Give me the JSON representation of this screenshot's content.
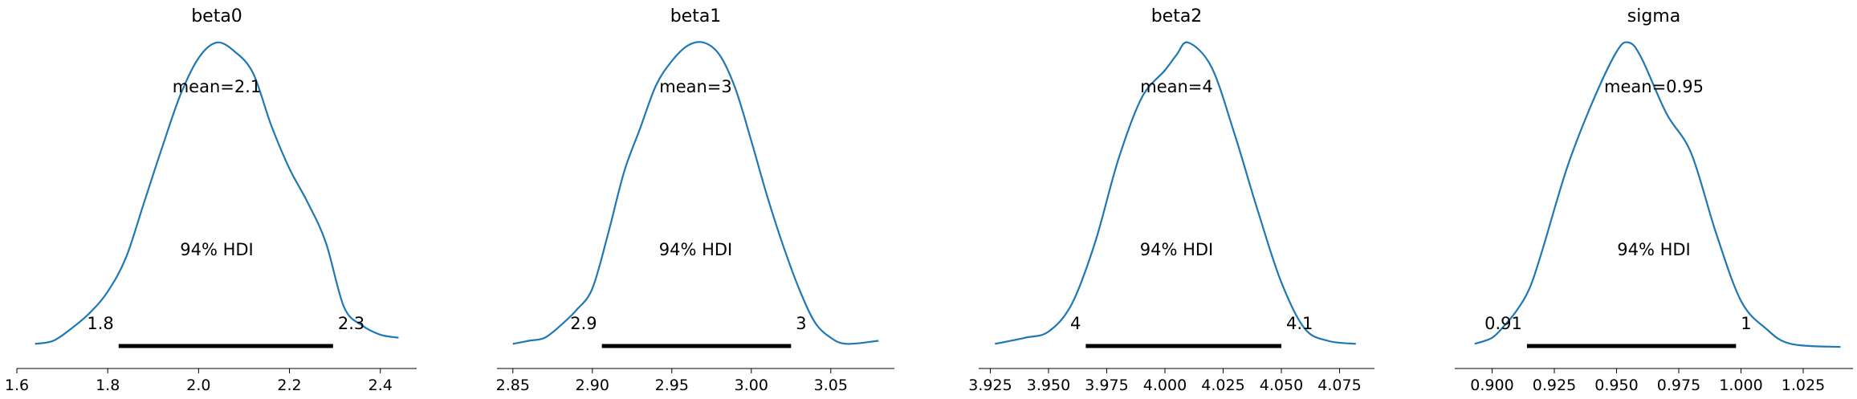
{
  "chart_data": [
    {
      "type": "area",
      "title": "beta0",
      "xlim": [
        1.6,
        2.48
      ],
      "ticks": [
        1.6,
        1.8,
        2.0,
        2.2,
        2.4
      ],
      "tick_labels": [
        "1.6",
        "1.8",
        "2.0",
        "2.2",
        "2.4"
      ],
      "mean_label": "mean=2.1",
      "hdi_label": "94% HDI",
      "hdi": [
        1.824,
        2.296
      ],
      "hdi_low_label": "1.8",
      "hdi_high_label": "2.3",
      "density": [
        [
          1.64,
          0.02
        ],
        [
          1.68,
          0.03
        ],
        [
          1.72,
          0.07
        ],
        [
          1.76,
          0.12
        ],
        [
          1.8,
          0.19
        ],
        [
          1.84,
          0.3
        ],
        [
          1.88,
          0.48
        ],
        [
          1.92,
          0.66
        ],
        [
          1.96,
          0.83
        ],
        [
          2.0,
          0.95
        ],
        [
          2.04,
          1.0
        ],
        [
          2.08,
          0.97
        ],
        [
          2.12,
          0.9
        ],
        [
          2.16,
          0.73
        ],
        [
          2.2,
          0.59
        ],
        [
          2.24,
          0.48
        ],
        [
          2.28,
          0.35
        ],
        [
          2.32,
          0.14
        ],
        [
          2.36,
          0.08
        ],
        [
          2.4,
          0.05
        ],
        [
          2.44,
          0.04
        ]
      ]
    },
    {
      "type": "area",
      "title": "beta1",
      "xlim": [
        2.84,
        3.09
      ],
      "ticks": [
        2.85,
        2.9,
        2.95,
        3.0,
        3.05
      ],
      "tick_labels": [
        "2.85",
        "2.90",
        "2.95",
        "3.00",
        "3.05"
      ],
      "mean_label": "mean=3",
      "hdi_label": "94% HDI",
      "hdi": [
        2.906,
        3.025
      ],
      "hdi_low_label": "2.9",
      "hdi_high_label": "3",
      "density": [
        [
          2.85,
          0.02
        ],
        [
          2.86,
          0.03
        ],
        [
          2.87,
          0.04
        ],
        [
          2.88,
          0.08
        ],
        [
          2.89,
          0.13
        ],
        [
          2.9,
          0.2
        ],
        [
          2.91,
          0.38
        ],
        [
          2.92,
          0.58
        ],
        [
          2.93,
          0.72
        ],
        [
          2.94,
          0.86
        ],
        [
          2.95,
          0.94
        ],
        [
          2.96,
          0.99
        ],
        [
          2.97,
          1.0
        ],
        [
          2.98,
          0.96
        ],
        [
          2.99,
          0.85
        ],
        [
          3.0,
          0.68
        ],
        [
          3.01,
          0.5
        ],
        [
          3.02,
          0.34
        ],
        [
          3.03,
          0.2
        ],
        [
          3.04,
          0.09
        ],
        [
          3.05,
          0.04
        ],
        [
          3.06,
          0.02
        ],
        [
          3.08,
          0.03
        ]
      ]
    },
    {
      "type": "area",
      "title": "beta2",
      "xlim": [
        3.92,
        4.09
      ],
      "ticks": [
        3.925,
        3.95,
        3.975,
        4.0,
        4.025,
        4.05,
        4.075
      ],
      "tick_labels": [
        "3.925",
        "3.950",
        "3.975",
        "4.000",
        "4.025",
        "4.050",
        "4.075"
      ],
      "mean_label": "mean=4",
      "hdi_label": "94% HDI",
      "hdi": [
        3.966,
        4.05
      ],
      "hdi_low_label": "4",
      "hdi_high_label": "4.1",
      "density": [
        [
          3.927,
          0.02
        ],
        [
          3.94,
          0.04
        ],
        [
          3.95,
          0.06
        ],
        [
          3.96,
          0.15
        ],
        [
          3.97,
          0.35
        ],
        [
          3.98,
          0.62
        ],
        [
          3.99,
          0.82
        ],
        [
          4.0,
          0.91
        ],
        [
          4.005,
          0.96
        ],
        [
          4.01,
          1.0
        ],
        [
          4.02,
          0.92
        ],
        [
          4.03,
          0.7
        ],
        [
          4.04,
          0.45
        ],
        [
          4.05,
          0.22
        ],
        [
          4.06,
          0.07
        ],
        [
          4.07,
          0.03
        ],
        [
          4.082,
          0.02
        ]
      ]
    },
    {
      "type": "area",
      "title": "sigma",
      "xlim": [
        0.885,
        1.045
      ],
      "ticks": [
        0.9,
        0.925,
        0.95,
        0.975,
        1.0,
        1.025
      ],
      "tick_labels": [
        "0.900",
        "0.925",
        "0.950",
        "0.975",
        "1.000",
        "1.025"
      ],
      "mean_label": "mean=0.95",
      "hdi_label": "94% HDI",
      "hdi": [
        0.914,
        0.998
      ],
      "hdi_low_label": "0.91",
      "hdi_high_label": "1",
      "density": [
        [
          0.893,
          0.02
        ],
        [
          0.9,
          0.04
        ],
        [
          0.905,
          0.08
        ],
        [
          0.91,
          0.13
        ],
        [
          0.915,
          0.2
        ],
        [
          0.92,
          0.32
        ],
        [
          0.93,
          0.59
        ],
        [
          0.94,
          0.8
        ],
        [
          0.95,
          0.97
        ],
        [
          0.955,
          1.0
        ],
        [
          0.96,
          0.95
        ],
        [
          0.97,
          0.77
        ],
        [
          0.98,
          0.64
        ],
        [
          0.99,
          0.38
        ],
        [
          1.0,
          0.16
        ],
        [
          1.01,
          0.07
        ],
        [
          1.02,
          0.02
        ],
        [
          1.04,
          0.01
        ]
      ]
    }
  ]
}
